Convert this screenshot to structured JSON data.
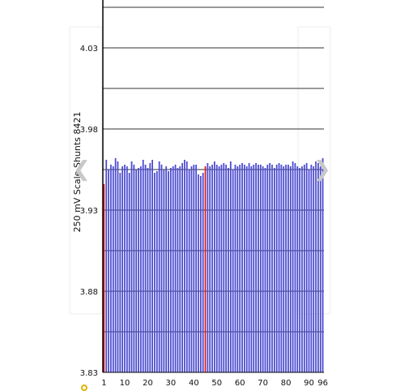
{
  "colors": {
    "bar": "#4a4ad0",
    "bar_highlight": "#e01818",
    "grid": "#333333",
    "axis": "#000000"
  },
  "navigation": {
    "prev_icon": "chevron-left-icon",
    "next_icon": "chevron-right-icon",
    "prev_glyph": "❮",
    "next_glyph": "❯"
  },
  "chart_data": {
    "type": "bar",
    "ylabel": "250 mV Scale  Shunts 8421",
    "xlabel": "",
    "ylim": [
      3.83,
      4.05
    ],
    "y_ticks": [
      "4.03",
      "3.98",
      "3.93",
      "3.88",
      "3.83"
    ],
    "y_tick_values": [
      4.03,
      3.98,
      3.93,
      3.88,
      3.83
    ],
    "y_gridlines": [
      4.055,
      4.03,
      4.005,
      3.98,
      3.955,
      3.93,
      3.905,
      3.88,
      3.855
    ],
    "x_ticks": [
      1,
      10,
      20,
      30,
      40,
      50,
      60,
      70,
      80,
      90,
      96
    ],
    "x_range": [
      1,
      96
    ],
    "highlighted": [
      1,
      45
    ],
    "grid": true,
    "legend": "none",
    "categories": [
      1,
      2,
      3,
      4,
      5,
      6,
      7,
      8,
      9,
      10,
      11,
      12,
      13,
      14,
      15,
      16,
      17,
      18,
      19,
      20,
      21,
      22,
      23,
      24,
      25,
      26,
      27,
      28,
      29,
      30,
      31,
      32,
      33,
      34,
      35,
      36,
      37,
      38,
      39,
      40,
      41,
      42,
      43,
      44,
      45,
      46,
      47,
      48,
      49,
      50,
      51,
      52,
      53,
      54,
      55,
      56,
      57,
      58,
      59,
      60,
      61,
      62,
      63,
      64,
      65,
      66,
      67,
      68,
      69,
      70,
      71,
      72,
      73,
      74,
      75,
      76,
      77,
      78,
      79,
      80,
      81,
      82,
      83,
      84,
      85,
      86,
      87,
      88,
      89,
      90,
      91,
      92,
      93,
      94,
      95,
      96
    ],
    "values": [
      3.946,
      3.961,
      3.955,
      3.958,
      3.957,
      3.962,
      3.96,
      3.953,
      3.957,
      3.958,
      3.957,
      3.953,
      3.96,
      3.958,
      3.955,
      3.956,
      3.957,
      3.961,
      3.958,
      3.956,
      3.959,
      3.961,
      3.953,
      3.954,
      3.96,
      3.958,
      3.955,
      3.957,
      3.954,
      3.956,
      3.957,
      3.958,
      3.956,
      3.957,
      3.959,
      3.961,
      3.96,
      3.955,
      3.957,
      3.958,
      3.958,
      3.952,
      3.951,
      3.953,
      3.957,
      3.959,
      3.957,
      3.958,
      3.96,
      3.958,
      3.957,
      3.958,
      3.959,
      3.958,
      3.956,
      3.96,
      3.955,
      3.958,
      3.957,
      3.958,
      3.959,
      3.958,
      3.957,
      3.959,
      3.957,
      3.958,
      3.959,
      3.958,
      3.958,
      3.957,
      3.956,
      3.958,
      3.959,
      3.958,
      3.956,
      3.958,
      3.959,
      3.958,
      3.957,
      3.958,
      3.958,
      3.957,
      3.96,
      3.959,
      3.957,
      3.956,
      3.957,
      3.958,
      3.959,
      3.955,
      3.958,
      3.957,
      3.96,
      3.959,
      3.957,
      3.962
    ]
  },
  "footer": {
    "status_icon": "info-circle-icon",
    "caption": ""
  }
}
